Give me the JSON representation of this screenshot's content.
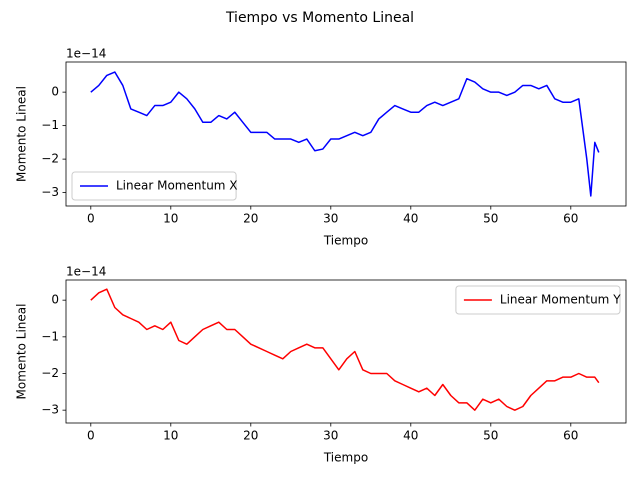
{
  "title": "Tiempo vs Momento Lineal",
  "chart_data": [
    {
      "type": "line",
      "xlabel": "Tiempo",
      "ylabel": "Momento Lineal",
      "y_offset_label": "1e−14",
      "legend": "lower left",
      "xlim": [
        -3.1,
        66.9
      ],
      "ylim": [
        -3.4,
        0.9
      ],
      "xticks": [
        0,
        10,
        20,
        30,
        40,
        50,
        60
      ],
      "yticks": [
        {
          "value": -3,
          "label": "−3"
        },
        {
          "value": -2,
          "label": "−2"
        },
        {
          "value": -1,
          "label": "−1"
        },
        0
      ],
      "x": [
        0,
        1,
        2,
        3,
        4,
        5,
        6,
        7,
        8,
        9,
        10,
        11,
        12,
        13,
        14,
        15,
        16,
        17,
        18,
        19,
        20,
        21,
        22,
        23,
        24,
        25,
        26,
        27,
        28,
        29,
        30,
        31,
        32,
        33,
        34,
        35,
        36,
        37,
        38,
        39,
        40,
        41,
        42,
        43,
        44,
        45,
        46,
        47,
        48,
        49,
        50,
        51,
        52,
        53,
        54,
        55,
        56,
        57,
        58,
        59,
        60,
        61,
        62,
        62.5,
        63,
        63.5
      ],
      "series": [
        {
          "name": "Linear Momentum X",
          "color": "#0000ff",
          "values": [
            0,
            0.2,
            0.5,
            0.6,
            0.2,
            -0.5,
            -0.6,
            -0.7,
            -0.4,
            -0.4,
            -0.3,
            0,
            -0.2,
            -0.5,
            -0.9,
            -0.9,
            -0.7,
            -0.8,
            -0.6,
            -0.9,
            -1.2,
            -1.2,
            -1.2,
            -1.4,
            -1.4,
            -1.4,
            -1.5,
            -1.4,
            -1.75,
            -1.7,
            -1.4,
            -1.4,
            -1.3,
            -1.2,
            -1.3,
            -1.2,
            -0.8,
            -0.6,
            -0.4,
            -0.5,
            -0.6,
            -0.6,
            -0.4,
            -0.3,
            -0.4,
            -0.3,
            -0.2,
            0.4,
            0.3,
            0.1,
            0,
            0,
            -0.1,
            0,
            0.2,
            0.2,
            0.1,
            0.2,
            -0.2,
            -0.3,
            -0.3,
            -0.2,
            -2.0,
            -3.1,
            -1.5,
            -1.8
          ]
        }
      ]
    },
    {
      "type": "line",
      "xlabel": "Tiempo",
      "ylabel": "Momento Lineal",
      "y_offset_label": "1e−14",
      "legend": "upper right",
      "xlim": [
        -3.1,
        66.9
      ],
      "ylim": [
        -3.35,
        0.55
      ],
      "xticks": [
        0,
        10,
        20,
        30,
        40,
        50,
        60
      ],
      "yticks": [
        {
          "value": -3,
          "label": "−3"
        },
        {
          "value": -2,
          "label": "−2"
        },
        {
          "value": -1,
          "label": "−1"
        },
        0
      ],
      "x": [
        0,
        1,
        2,
        3,
        4,
        5,
        6,
        7,
        8,
        9,
        10,
        11,
        12,
        13,
        14,
        15,
        16,
        17,
        18,
        19,
        20,
        21,
        22,
        23,
        24,
        25,
        26,
        27,
        28,
        29,
        30,
        31,
        32,
        33,
        34,
        35,
        36,
        37,
        38,
        39,
        40,
        41,
        42,
        43,
        44,
        45,
        46,
        47,
        48,
        49,
        50,
        51,
        52,
        53,
        54,
        55,
        56,
        57,
        58,
        59,
        60,
        61,
        62,
        63,
        63.5
      ],
      "series": [
        {
          "name": "Linear Momentum Y",
          "color": "#ff0000",
          "values": [
            0,
            0.2,
            0.3,
            -0.2,
            -0.4,
            -0.5,
            -0.6,
            -0.8,
            -0.7,
            -0.8,
            -0.6,
            -1.1,
            -1.2,
            -1.0,
            -0.8,
            -0.7,
            -0.6,
            -0.8,
            -0.8,
            -1.0,
            -1.2,
            -1.3,
            -1.4,
            -1.5,
            -1.6,
            -1.4,
            -1.3,
            -1.2,
            -1.3,
            -1.3,
            -1.6,
            -1.9,
            -1.6,
            -1.4,
            -1.9,
            -2.0,
            -2.0,
            -2.0,
            -2.2,
            -2.3,
            -2.4,
            -2.5,
            -2.4,
            -2.6,
            -2.3,
            -2.6,
            -2.8,
            -2.8,
            -3.0,
            -2.7,
            -2.8,
            -2.7,
            -2.9,
            -3.0,
            -2.9,
            -2.6,
            -2.4,
            -2.2,
            -2.2,
            -2.1,
            -2.1,
            -2.0,
            -2.1,
            -2.1,
            -2.25
          ]
        }
      ]
    }
  ]
}
